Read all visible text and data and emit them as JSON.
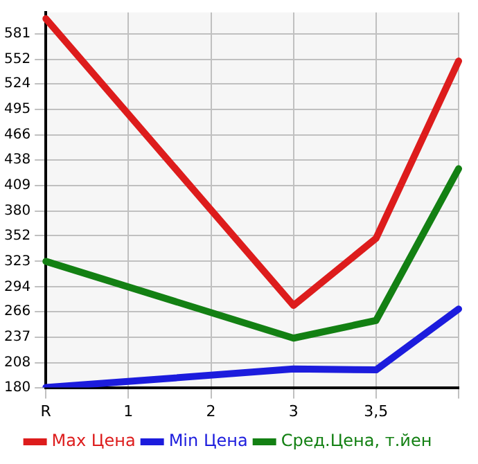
{
  "chart_data": {
    "type": "line",
    "categories": [
      "R",
      "1",
      "2",
      "3",
      "3,5",
      null
    ],
    "series": [
      {
        "name": "Max Цена",
        "color": "#dd1c1c",
        "values": [
          598,
          null,
          null,
          273,
          349,
          550
        ]
      },
      {
        "name": "Min Цена",
        "color": "#1c1cdd",
        "values": [
          180,
          null,
          null,
          201,
          200,
          269
        ]
      },
      {
        "name": "Сред.Цена, т.йен",
        "color": "#138013",
        "values": [
          323,
          null,
          null,
          236,
          256,
          428
        ]
      }
    ],
    "ylim": [
      180,
      605
    ],
    "yticks": [
      180,
      208,
      237,
      266,
      294,
      323,
      352,
      380,
      409,
      438,
      466,
      495,
      524,
      552,
      581
    ],
    "grid": true,
    "legend": "bottom",
    "marker": "none",
    "line_style": "solid"
  }
}
